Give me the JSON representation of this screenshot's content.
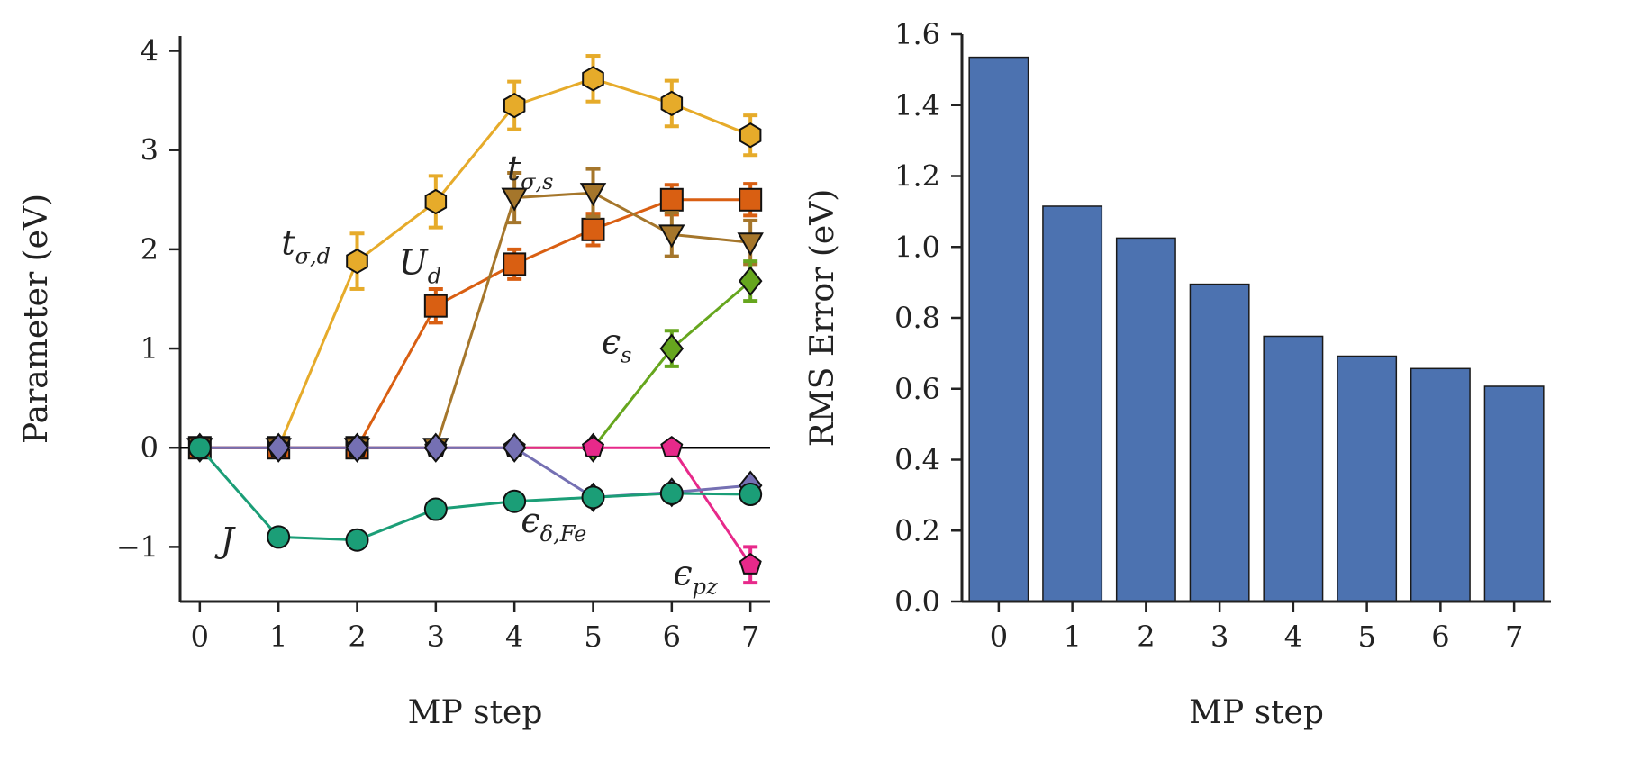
{
  "chart_data": [
    {
      "type": "line",
      "x": [
        0,
        1,
        2,
        3,
        4,
        5,
        6,
        7
      ],
      "xlabel": "MP step",
      "ylabel": "Parameter (eV)",
      "ylim": [
        -1.55,
        4.15
      ],
      "xlim": [
        -0.25,
        7.25
      ],
      "xticks": [
        "0",
        "1",
        "2",
        "3",
        "4",
        "5",
        "6",
        "7"
      ],
      "yticks": [
        {
          "value": -1,
          "label": "−1"
        },
        {
          "value": 0,
          "label": "0"
        },
        {
          "value": 1,
          "label": "1"
        },
        {
          "value": 2,
          "label": "2"
        },
        {
          "value": 3,
          "label": "3"
        },
        {
          "value": 4,
          "label": "4"
        }
      ],
      "zero_line": true,
      "grid": false,
      "series": [
        {
          "key": "t_sd",
          "color": "#e6ab2a",
          "marker": "hexagon",
          "values": [
            0,
            0,
            1.88,
            2.48,
            3.45,
            3.72,
            3.47,
            3.15
          ],
          "err": [
            0,
            0,
            0.28,
            0.26,
            0.24,
            0.23,
            0.23,
            0.2
          ]
        },
        {
          "key": "U_d",
          "color": "#d95f12",
          "marker": "square",
          "values": [
            0,
            0,
            0,
            1.43,
            1.85,
            2.2,
            2.5,
            2.5
          ],
          "err": [
            0,
            0,
            0,
            0.17,
            0.15,
            0.16,
            0.15,
            0.16
          ]
        },
        {
          "key": "t_ss",
          "color": "#a5762b",
          "marker": "triangle-down",
          "values": [
            0,
            0,
            0,
            0,
            2.52,
            2.57,
            2.15,
            2.07
          ],
          "err": [
            0,
            0,
            0,
            0,
            0.25,
            0.24,
            0.22,
            0.22
          ]
        },
        {
          "key": "eps_s",
          "color": "#66a61e",
          "marker": "diamond",
          "values": [
            0,
            0,
            0,
            0,
            0,
            0,
            1.0,
            1.68
          ],
          "err": [
            0,
            0,
            0,
            0,
            0,
            0,
            0.18,
            0.2
          ]
        },
        {
          "key": "eps_pz",
          "color": "#e7298a",
          "marker": "pentagon",
          "values": [
            0,
            0,
            0,
            0,
            0,
            0,
            0,
            -1.18
          ],
          "err": [
            0,
            0,
            0,
            0,
            0,
            0,
            0,
            0.18
          ]
        },
        {
          "key": "eps_dFe",
          "color": "#7570b3",
          "marker": "diamond",
          "values": [
            0,
            0,
            0,
            0,
            0,
            -0.5,
            -0.45,
            -0.38
          ],
          "err": [
            0,
            0,
            0,
            0,
            0,
            0,
            0,
            0
          ]
        },
        {
          "key": "J",
          "color": "#1b9e77",
          "marker": "circle",
          "values": [
            0,
            -0.9,
            -0.93,
            -0.62,
            -0.54,
            -0.5,
            -0.46,
            -0.47
          ],
          "err": [
            0,
            0,
            0,
            0,
            0,
            0,
            0,
            0
          ]
        }
      ],
      "annotations": [
        {
          "key": "t_sd",
          "main": "t",
          "sub": "σ,d",
          "at": [
            1.35,
            1.95
          ]
        },
        {
          "key": "U_d",
          "main": "U",
          "sub": "d",
          "at": [
            2.8,
            1.75
          ]
        },
        {
          "key": "t_ss",
          "main": "t",
          "sub": "σ,s",
          "at": [
            4.2,
            2.7
          ]
        },
        {
          "key": "eps_s",
          "main": "ϵ",
          "sub": "s",
          "at": [
            5.3,
            0.95
          ]
        },
        {
          "key": "eps_dFe",
          "main": "ϵ",
          "sub": "δ,Fe",
          "at": [
            4.5,
            -0.85
          ]
        },
        {
          "key": "eps_pz",
          "main": "ϵ",
          "sub": "pz",
          "at": [
            6.3,
            -1.38
          ]
        },
        {
          "key": "J",
          "main": "J",
          "sub": "",
          "at": [
            0.35,
            -1.05
          ]
        }
      ]
    },
    {
      "type": "bar",
      "categories": [
        "0",
        "1",
        "2",
        "3",
        "4",
        "5",
        "6",
        "7"
      ],
      "values": [
        1.535,
        1.115,
        1.025,
        0.895,
        0.748,
        0.692,
        0.657,
        0.607
      ],
      "color": "#4c72b0",
      "xlabel": "MP step",
      "ylabel": "RMS Error (eV)",
      "ylim": [
        0,
        1.6
      ],
      "yticks": [
        "0.0",
        "0.2",
        "0.4",
        "0.6",
        "0.8",
        "1.0",
        "1.2",
        "1.4",
        "1.6"
      ],
      "grid": false
    }
  ]
}
